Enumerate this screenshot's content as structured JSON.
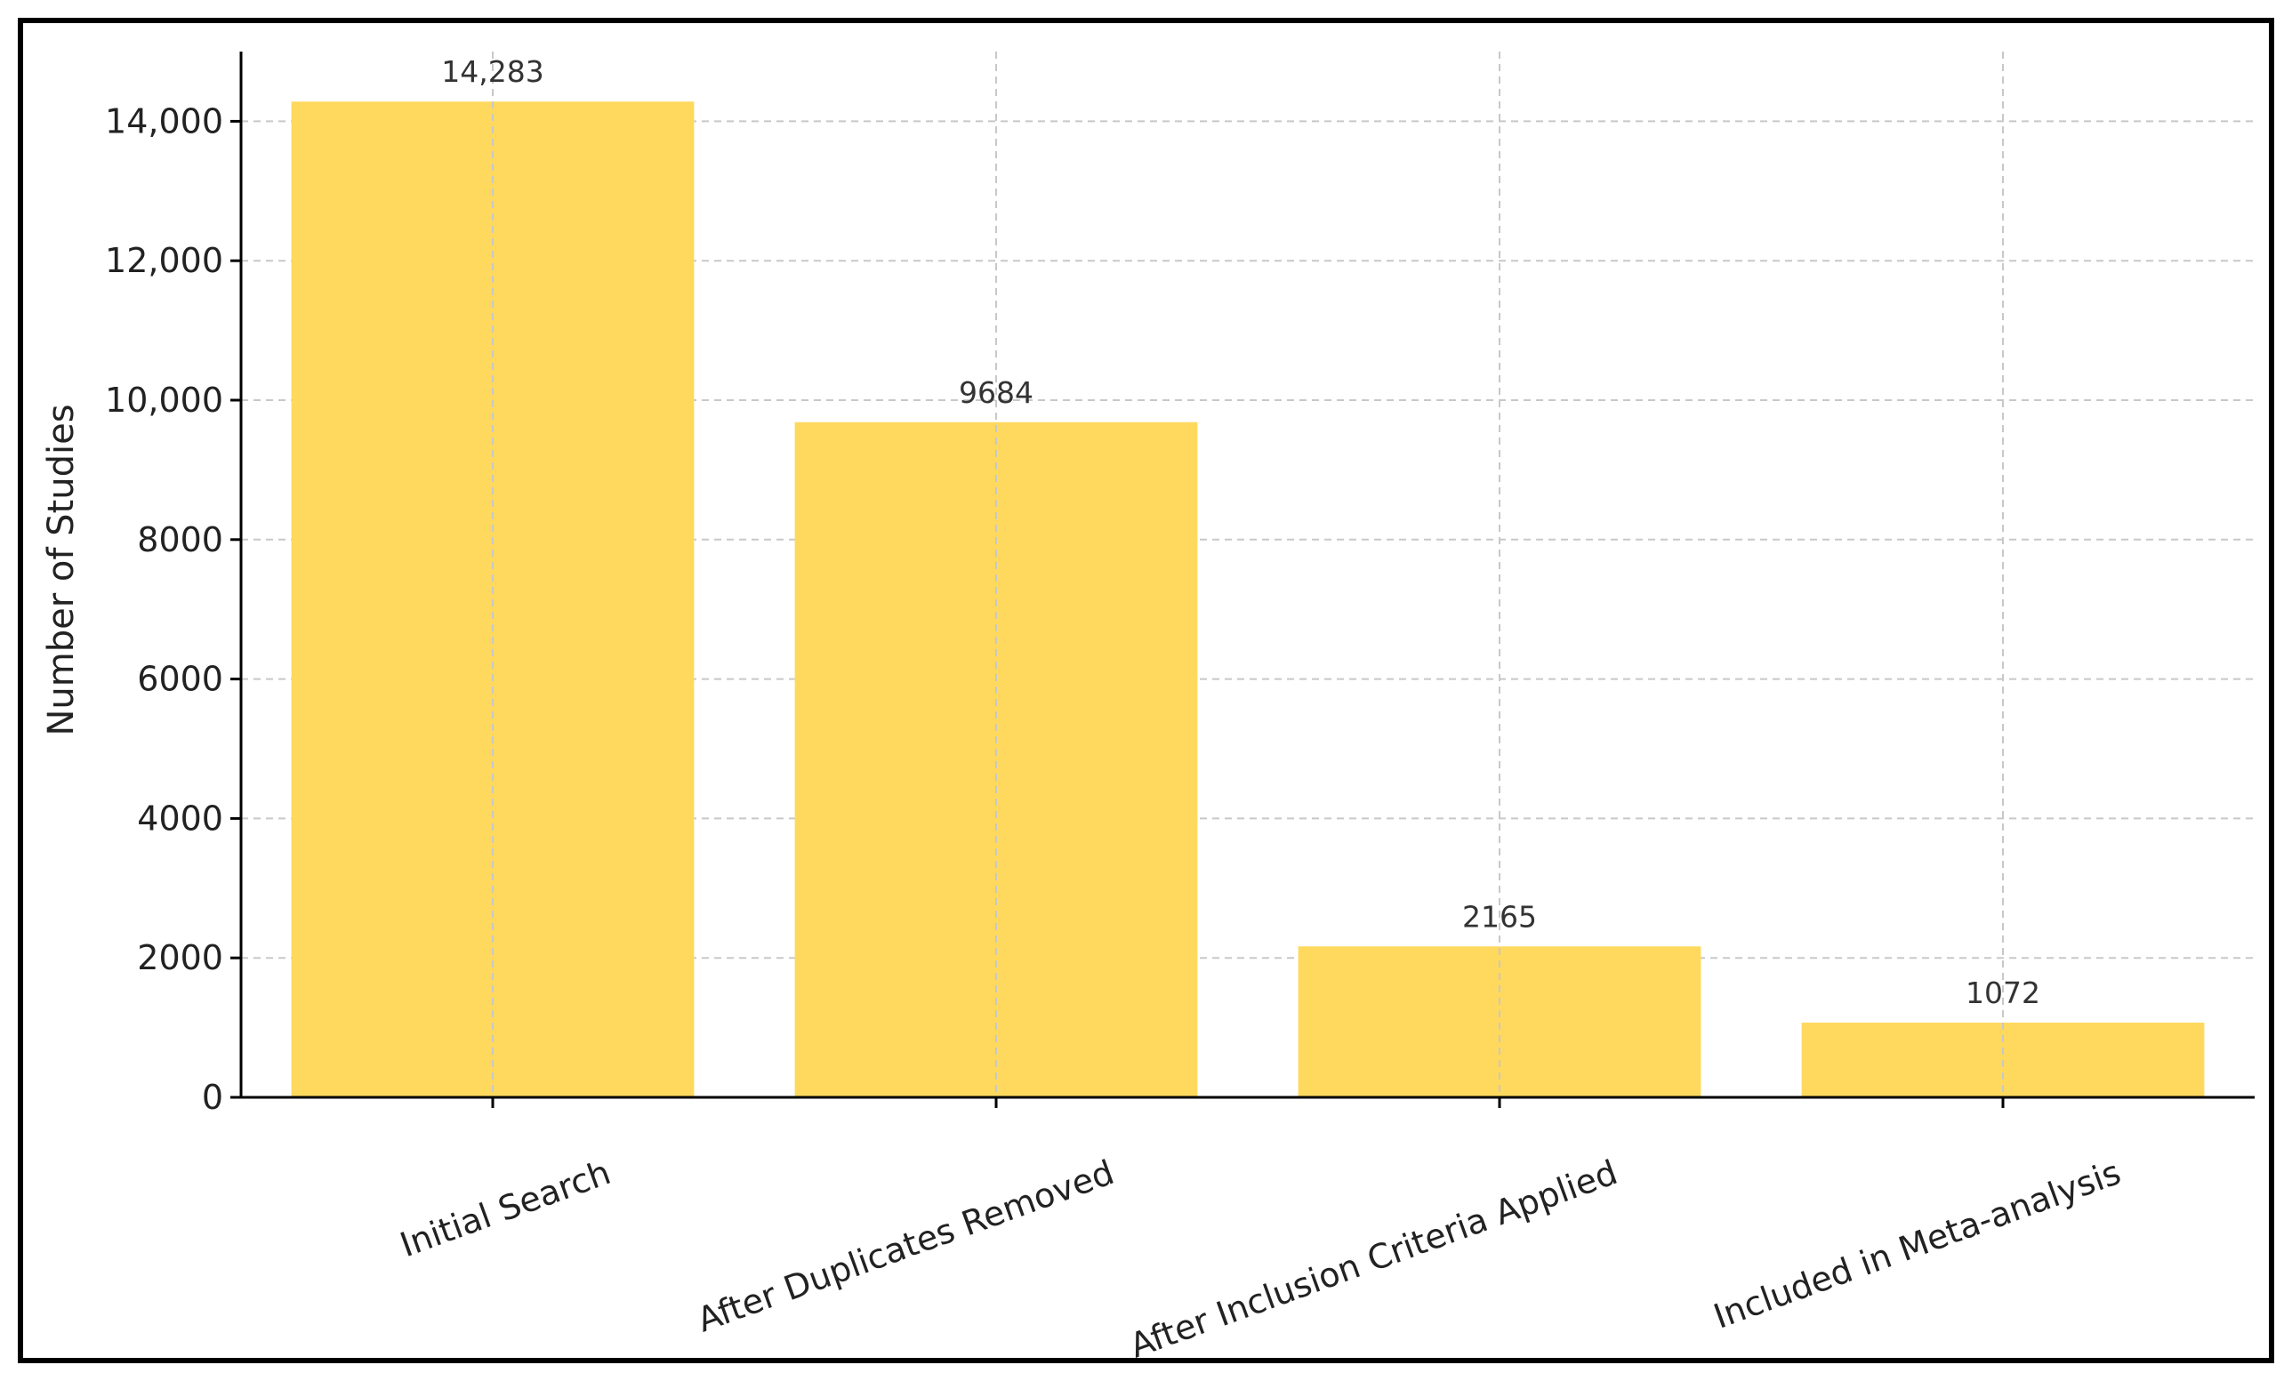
{
  "chart_data": {
    "type": "bar",
    "categories": [
      "Initial Search",
      "After Duplicates Removed",
      "After Inclusion Criteria Applied",
      "Included in Meta-analysis"
    ],
    "values": [
      14283,
      9684,
      2165,
      1072
    ],
    "data_labels": [
      "14,283",
      "9684",
      "2165",
      "1072"
    ],
    "title": "",
    "xlabel": "",
    "ylabel": "Number of Studies",
    "ylim": [
      0,
      15000
    ],
    "yticks": [
      0,
      2000,
      4000,
      6000,
      8000,
      10000,
      12000,
      14000
    ],
    "ytick_labels": [
      "0",
      "2000",
      "4000",
      "6000",
      "8000",
      "10,000",
      "12,000",
      "14,000"
    ],
    "grid": true,
    "bar_color": "#FFD95E",
    "grid_color": "#c8c8c8",
    "axis_color": "#000000"
  }
}
